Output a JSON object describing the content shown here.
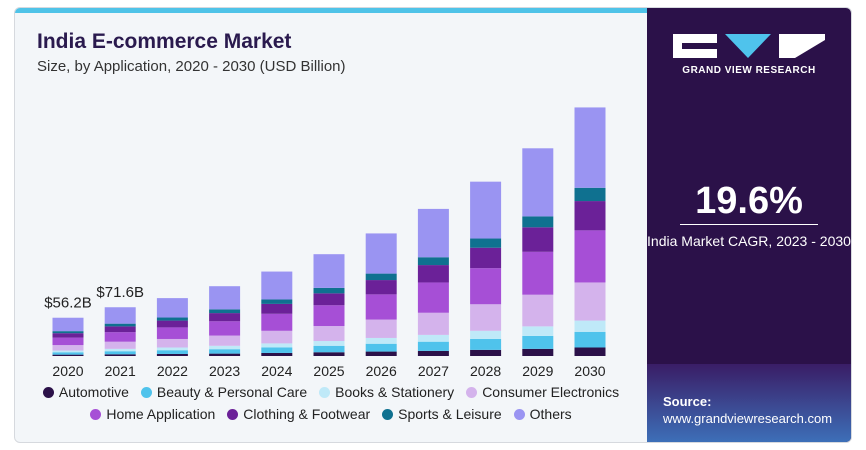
{
  "title": "India E-commerce Market",
  "subtitle": "Size, by Application, 2020 - 2030 (USD Billion)",
  "brand": "GRAND VIEW RESEARCH",
  "cagr_value": "19.6%",
  "cagr_label": "India Market CAGR, 2023 - 2030",
  "source_label": "Source:",
  "source_url": "www.grandviewresearch.com",
  "colors": {
    "Automotive": "#2b1149",
    "Beauty & Personal Care": "#4fc3ec",
    "Books & Stationery": "#bfe9f8",
    "Consumer Electronics": "#d4b3ec",
    "Home Application": "#a64fd6",
    "Clothing & Footwear": "#6b2198",
    "Sports & Leisure": "#0f7190",
    "Others": "#9a94f2"
  },
  "chart_data": {
    "type": "bar",
    "stacked": true,
    "categories": [
      "2020",
      "2021",
      "2022",
      "2023",
      "2024",
      "2025",
      "2026",
      "2027",
      "2028",
      "2029",
      "2030"
    ],
    "annotations": [
      {
        "category": "2020",
        "text": "$56.2B"
      },
      {
        "category": "2021",
        "text": "$71.6B"
      }
    ],
    "series": [
      {
        "name": "Automotive",
        "values": [
          2,
          2.5,
          3,
          3.5,
          4.5,
          5.5,
          6.5,
          7.5,
          9,
          10.5,
          12.5
        ]
      },
      {
        "name": "Beauty & Personal Care",
        "values": [
          3.5,
          4.5,
          5.5,
          6.5,
          8,
          9.5,
          11.5,
          13.5,
          16,
          19,
          23
        ]
      },
      {
        "name": "Books & Stationery",
        "values": [
          2.5,
          3.5,
          4,
          5,
          6,
          7,
          8.5,
          10,
          12,
          14,
          16.5
        ]
      },
      {
        "name": "Consumer Electronics",
        "values": [
          8,
          10.5,
          12.5,
          15,
          18.5,
          22,
          27,
          32.5,
          39,
          46.5,
          56
        ]
      },
      {
        "name": "Home Application",
        "values": [
          11,
          14,
          17,
          21,
          25,
          30.5,
          37,
          44.5,
          53,
          63,
          76.5
        ]
      },
      {
        "name": "Clothing & Footwear",
        "values": [
          6.5,
          8.5,
          10,
          12,
          14.5,
          17.5,
          21,
          25.5,
          30,
          36,
          43
        ]
      },
      {
        "name": "Sports & Leisure",
        "values": [
          3,
          4,
          4.5,
          5.5,
          6.5,
          8,
          9.5,
          11.5,
          13.5,
          16,
          19.5
        ]
      },
      {
        "name": "Others",
        "values": [
          19.7,
          24.1,
          28.5,
          34,
          41,
          49.5,
          59,
          71,
          83.5,
          100,
          118
        ]
      }
    ],
    "ylim": [
      0,
      400
    ],
    "grid": false,
    "legend": "bottom"
  }
}
